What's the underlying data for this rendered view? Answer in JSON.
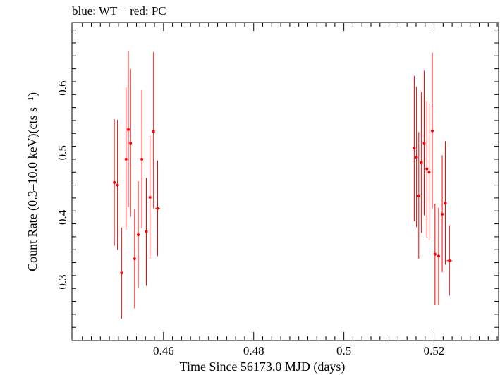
{
  "chart_data": {
    "type": "scatter",
    "title": "blue: WT − red: PC",
    "xlabel": "Time Since 56173.0 MJD (days)",
    "ylabel": "Count Rate (0.3–10.0 keV)(cts s⁻¹)",
    "xlim": [
      0.4397,
      0.5343
    ],
    "ylim": [
      0.2095,
      0.7016
    ],
    "x_ticks": [
      0.46,
      0.48,
      0.5,
      0.52
    ],
    "x_tick_labels": [
      "0.46",
      "0.48",
      "0.5",
      "0.52"
    ],
    "y_ticks": [
      0.3,
      0.4,
      0.5,
      0.6
    ],
    "y_tick_labels": [
      "0.3",
      "0.4",
      "0.5",
      "0.6"
    ],
    "grid": false,
    "series": [
      {
        "color": "#ff0000",
        "points": [
          {
            "x": 0.4491,
            "y": 0.454,
            "ylo": 0.356,
            "yhi": 0.552,
            "xerr": 0.0002
          },
          {
            "x": 0.4498,
            "y": 0.45,
            "ylo": 0.35,
            "yhi": 0.551,
            "xerr": 0.0002
          },
          {
            "x": 0.4507,
            "y": 0.314,
            "ylo": 0.243,
            "yhi": 0.384,
            "xerr": 0.0003
          },
          {
            "x": 0.4517,
            "y": 0.49,
            "ylo": 0.381,
            "yhi": 0.601,
            "xerr": 0.0002
          },
          {
            "x": 0.4522,
            "y": 0.536,
            "ylo": 0.416,
            "yhi": 0.658,
            "xerr": 0.0002
          },
          {
            "x": 0.4527,
            "y": 0.515,
            "ylo": 0.401,
            "yhi": 0.63,
            "xerr": 0.0002
          },
          {
            "x": 0.4536,
            "y": 0.336,
            "ylo": 0.259,
            "yhi": 0.413,
            "xerr": 0.0003
          },
          {
            "x": 0.4544,
            "y": 0.373,
            "ylo": 0.291,
            "yhi": 0.456,
            "xerr": 0.0003
          },
          {
            "x": 0.4552,
            "y": 0.49,
            "ylo": 0.383,
            "yhi": 0.597,
            "xerr": 0.0002
          },
          {
            "x": 0.4562,
            "y": 0.378,
            "ylo": 0.294,
            "yhi": 0.461,
            "xerr": 0.0003
          },
          {
            "x": 0.457,
            "y": 0.431,
            "ylo": 0.336,
            "yhi": 0.526,
            "xerr": 0.0003
          },
          {
            "x": 0.4578,
            "y": 0.533,
            "ylo": 0.414,
            "yhi": 0.656,
            "xerr": 0.0002
          },
          {
            "x": 0.4587,
            "y": 0.414,
            "ylo": 0.34,
            "yhi": 0.488,
            "xerr": 0.0005
          },
          {
            "x": 0.5156,
            "y": 0.507,
            "ylo": 0.394,
            "yhi": 0.619,
            "xerr": 0.0002
          },
          {
            "x": 0.5161,
            "y": 0.493,
            "ylo": 0.385,
            "yhi": 0.602,
            "xerr": 0.0002
          },
          {
            "x": 0.5166,
            "y": 0.433,
            "ylo": 0.336,
            "yhi": 0.532,
            "xerr": 0.0003
          },
          {
            "x": 0.5172,
            "y": 0.485,
            "ylo": 0.376,
            "yhi": 0.594,
            "xerr": 0.0002
          },
          {
            "x": 0.5178,
            "y": 0.515,
            "ylo": 0.403,
            "yhi": 0.627,
            "xerr": 0.0002
          },
          {
            "x": 0.5184,
            "y": 0.475,
            "ylo": 0.369,
            "yhi": 0.581,
            "xerr": 0.0002
          },
          {
            "x": 0.5189,
            "y": 0.47,
            "ylo": 0.365,
            "yhi": 0.576,
            "xerr": 0.0002
          },
          {
            "x": 0.5196,
            "y": 0.534,
            "ylo": 0.414,
            "yhi": 0.655,
            "xerr": 0.0003
          },
          {
            "x": 0.5202,
            "y": 0.343,
            "ylo": 0.265,
            "yhi": 0.421,
            "xerr": 0.0003
          },
          {
            "x": 0.521,
            "y": 0.34,
            "ylo": 0.265,
            "yhi": 0.415,
            "xerr": 0.0003
          },
          {
            "x": 0.5218,
            "y": 0.405,
            "ylo": 0.315,
            "yhi": 0.496,
            "xerr": 0.0003
          },
          {
            "x": 0.5225,
            "y": 0.422,
            "ylo": 0.327,
            "yhi": 0.518,
            "xerr": 0.0002
          },
          {
            "x": 0.5234,
            "y": 0.333,
            "ylo": 0.279,
            "yhi": 0.388,
            "xerr": 0.0006
          }
        ]
      }
    ]
  }
}
